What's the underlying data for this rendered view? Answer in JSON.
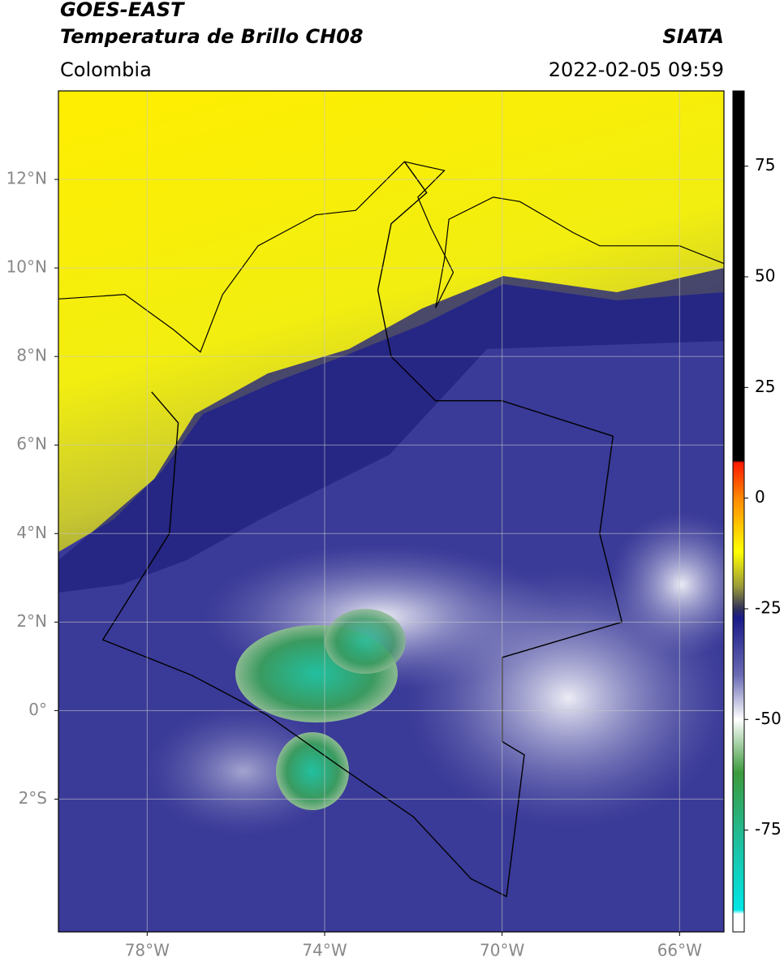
{
  "header": {
    "title": "GOES-EAST",
    "subtitle": "Temperatura de Brillo CH08",
    "source": "SIATA",
    "region": "Colombia",
    "datetime": "2022-02-05 09:59"
  },
  "map": {
    "xlim": [
      -80,
      -65
    ],
    "ylim": [
      -5,
      14
    ],
    "xticks": [
      {
        "value": -78,
        "label": "78°W"
      },
      {
        "value": -74,
        "label": "74°W"
      },
      {
        "value": -70,
        "label": "70°W"
      },
      {
        "value": -66,
        "label": "66°W"
      }
    ],
    "yticks": [
      {
        "value": 12,
        "label": "12°N"
      },
      {
        "value": 10,
        "label": "10°N"
      },
      {
        "value": 8,
        "label": "8°N"
      },
      {
        "value": 6,
        "label": "6°N"
      },
      {
        "value": 4,
        "label": "4°N"
      },
      {
        "value": 2,
        "label": "2°N"
      },
      {
        "value": 0,
        "label": "0°"
      },
      {
        "value": -2,
        "label": "2°S"
      }
    ],
    "grid": true
  },
  "colorbar": {
    "clim": [
      -98,
      92
    ],
    "ticks": [
      75,
      50,
      25,
      0,
      -25,
      -50,
      -75
    ],
    "colormap": [
      {
        "value": 92,
        "color": "#000000"
      },
      {
        "value": 8.5,
        "color": "#000000"
      },
      {
        "value": 8,
        "color": "#ff1a00"
      },
      {
        "value": 0,
        "color": "#ff8800"
      },
      {
        "value": -12,
        "color": "#ffff00"
      },
      {
        "value": -20,
        "color": "#9a9a3a"
      },
      {
        "value": -25,
        "color": "#30305a"
      },
      {
        "value": -27,
        "color": "#1a1a88"
      },
      {
        "value": -40,
        "color": "#6a6ab4"
      },
      {
        "value": -50,
        "color": "#ffffff"
      },
      {
        "value": -62,
        "color": "#3c9a3c"
      },
      {
        "value": -78,
        "color": "#1ec0a0"
      },
      {
        "value": -93,
        "color": "#00e6e6"
      },
      {
        "value": -94,
        "color": "#ffffff"
      },
      {
        "value": -98,
        "color": "#ffffff"
      }
    ]
  }
}
